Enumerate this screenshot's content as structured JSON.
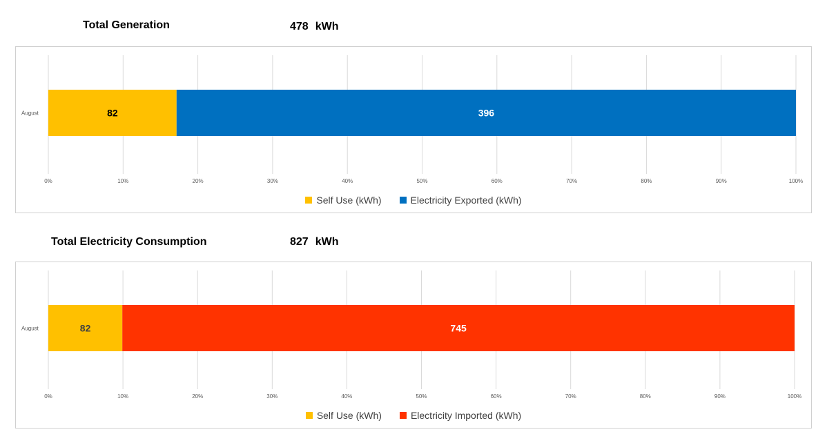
{
  "section_1": {
    "heading": "Total Generation",
    "total_value": "478",
    "total_unit": "kWh"
  },
  "section_2": {
    "heading": "Total Electricity Consumption",
    "total_value": "827",
    "total_unit": "kWh"
  },
  "chart_data": [
    {
      "type": "bar",
      "orientation": "horizontal",
      "stacking": "percent",
      "categories": [
        "August"
      ],
      "series": [
        {
          "name": "Self Use (kWh)",
          "values": [
            82
          ],
          "color": "#FFC000",
          "label_color": "#000000"
        },
        {
          "name": "Electricity Exported (kWh)",
          "values": [
            396
          ],
          "color": "#0070C0",
          "label_color": "#FFFFFF"
        }
      ],
      "xlim": [
        0,
        100
      ],
      "x_ticks": [
        "0%",
        "10%",
        "20%",
        "30%",
        "40%",
        "50%",
        "60%",
        "70%",
        "80%",
        "90%",
        "100%"
      ],
      "grid": true,
      "legend": "bottom"
    },
    {
      "type": "bar",
      "orientation": "horizontal",
      "stacking": "percent",
      "categories": [
        "August"
      ],
      "series": [
        {
          "name": "Self Use (kWh)",
          "values": [
            82
          ],
          "color": "#FFC000",
          "label_color": "#404040"
        },
        {
          "name": "Electricity Imported (kWh)",
          "values": [
            745
          ],
          "color": "#FF3300",
          "label_color": "#FFFFFF"
        }
      ],
      "xlim": [
        0,
        100
      ],
      "x_ticks": [
        "0%",
        "10%",
        "20%",
        "30%",
        "40%",
        "50%",
        "60%",
        "70%",
        "80%",
        "90%",
        "100%"
      ],
      "grid": true,
      "legend": "bottom"
    }
  ]
}
